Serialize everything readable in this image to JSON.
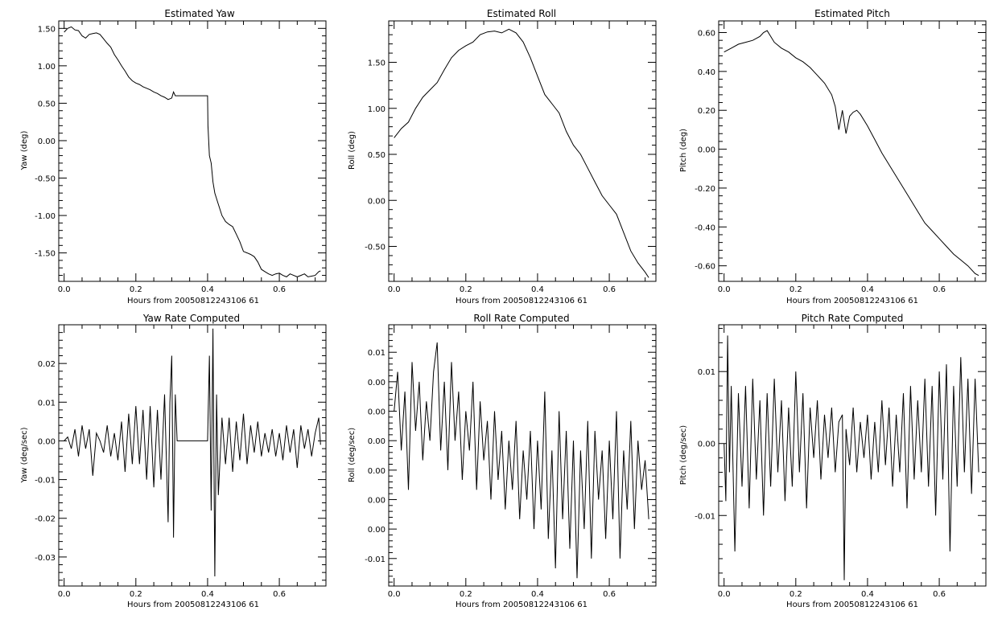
{
  "figure": {
    "background": "#ffffff",
    "line_color": "#000000"
  },
  "chart_data": [
    {
      "type": "line",
      "title": "Estimated Yaw",
      "xlabel": "Hours from 20050812243106 61",
      "ylabel": "Yaw (deg)",
      "xlim": [
        -0.015,
        0.73
      ],
      "ylim": [
        -1.88,
        1.6
      ],
      "xticks": [
        0.0,
        0.2,
        0.4,
        0.6
      ],
      "xtick_labels": [
        "0.0",
        "0.2",
        "0.4",
        "0.6"
      ],
      "yticks": [
        1.5,
        1.0,
        0.5,
        0.0,
        -0.5,
        -1.0,
        -1.5
      ],
      "ytick_labels": [
        "1.50",
        "1.00",
        "0.50",
        "0.00",
        "-0.50",
        "-1.00",
        "-1.50"
      ],
      "series": [
        {
          "x": [
            0.0,
            0.01,
            0.02,
            0.03,
            0.04,
            0.05,
            0.06,
            0.07,
            0.08,
            0.09,
            0.1,
            0.11,
            0.12,
            0.13,
            0.14,
            0.15,
            0.16,
            0.17,
            0.18,
            0.19,
            0.2,
            0.21,
            0.22,
            0.23,
            0.24,
            0.25,
            0.26,
            0.27,
            0.28,
            0.29,
            0.3,
            0.305,
            0.31,
            0.32,
            0.33,
            0.34,
            0.35,
            0.36,
            0.37,
            0.38,
            0.39,
            0.4,
            0.401,
            0.405,
            0.41,
            0.415,
            0.42,
            0.43,
            0.44,
            0.45,
            0.46,
            0.47,
            0.48,
            0.49,
            0.5,
            0.51,
            0.52,
            0.53,
            0.54,
            0.55,
            0.56,
            0.57,
            0.58,
            0.59,
            0.6,
            0.61,
            0.62,
            0.63,
            0.64,
            0.65,
            0.66,
            0.67,
            0.68,
            0.69,
            0.7,
            0.71,
            0.715
          ],
          "y": [
            1.45,
            1.5,
            1.52,
            1.48,
            1.47,
            1.4,
            1.37,
            1.42,
            1.43,
            1.44,
            1.42,
            1.36,
            1.3,
            1.25,
            1.15,
            1.08,
            1.0,
            0.93,
            0.85,
            0.8,
            0.77,
            0.75,
            0.72,
            0.7,
            0.68,
            0.65,
            0.63,
            0.6,
            0.58,
            0.55,
            0.57,
            0.65,
            0.6,
            0.6,
            0.6,
            0.6,
            0.6,
            0.6,
            0.6,
            0.6,
            0.6,
            0.6,
            0.2,
            -0.2,
            -0.3,
            -0.55,
            -0.7,
            -0.85,
            -1.0,
            -1.08,
            -1.12,
            -1.15,
            -1.25,
            -1.35,
            -1.48,
            -1.5,
            -1.52,
            -1.55,
            -1.62,
            -1.72,
            -1.75,
            -1.78,
            -1.8,
            -1.78,
            -1.77,
            -1.8,
            -1.82,
            -1.78,
            -1.8,
            -1.82,
            -1.8,
            -1.78,
            -1.82,
            -1.81,
            -1.8,
            -1.75,
            -1.74
          ]
        }
      ]
    },
    {
      "type": "line",
      "title": "Estimated Roll",
      "xlabel": "Hours from 20050812243106 61",
      "ylabel": "Roll (deg)",
      "xlim": [
        -0.015,
        0.73
      ],
      "ylim": [
        -0.88,
        1.95
      ],
      "xticks": [
        0.0,
        0.2,
        0.4,
        0.6
      ],
      "xtick_labels": [
        "0.0",
        "0.2",
        "0.4",
        "0.6"
      ],
      "yticks": [
        1.5,
        1.0,
        0.5,
        0.0,
        -0.5
      ],
      "ytick_labels": [
        "1.50",
        "1.00",
        "0.50",
        "0.00",
        "-0.50"
      ],
      "series": [
        {
          "x": [
            0.0,
            0.02,
            0.04,
            0.06,
            0.08,
            0.1,
            0.12,
            0.14,
            0.16,
            0.18,
            0.2,
            0.22,
            0.24,
            0.26,
            0.28,
            0.3,
            0.32,
            0.34,
            0.36,
            0.38,
            0.4,
            0.42,
            0.44,
            0.46,
            0.48,
            0.5,
            0.52,
            0.54,
            0.56,
            0.58,
            0.6,
            0.62,
            0.64,
            0.66,
            0.68,
            0.7,
            0.71
          ],
          "y": [
            0.68,
            0.78,
            0.85,
            1.0,
            1.12,
            1.2,
            1.28,
            1.42,
            1.55,
            1.63,
            1.68,
            1.72,
            1.8,
            1.83,
            1.84,
            1.82,
            1.86,
            1.82,
            1.72,
            1.55,
            1.35,
            1.15,
            1.05,
            0.95,
            0.75,
            0.6,
            0.5,
            0.35,
            0.2,
            0.05,
            -0.05,
            -0.15,
            -0.35,
            -0.55,
            -0.68,
            -0.78,
            -0.84
          ]
        }
      ]
    },
    {
      "type": "line",
      "title": "Estimated Pitch",
      "xlabel": "Hours from 20050812243106 61",
      "ylabel": "Pitch (deg)",
      "xlim": [
        -0.015,
        0.73
      ],
      "ylim": [
        -0.68,
        0.66
      ],
      "xticks": [
        0.0,
        0.2,
        0.4,
        0.6
      ],
      "xtick_labels": [
        "0.0",
        "0.2",
        "0.4",
        "0.6"
      ],
      "yticks": [
        0.6,
        0.4,
        0.2,
        0.0,
        -0.2,
        -0.4,
        -0.6
      ],
      "ytick_labels": [
        "0.60",
        "0.40",
        "0.20",
        "0.00",
        "-0.20",
        "-0.40",
        "-0.60"
      ],
      "series": [
        {
          "x": [
            0.0,
            0.02,
            0.04,
            0.06,
            0.08,
            0.1,
            0.11,
            0.12,
            0.13,
            0.14,
            0.16,
            0.18,
            0.2,
            0.22,
            0.24,
            0.26,
            0.28,
            0.3,
            0.31,
            0.32,
            0.33,
            0.34,
            0.35,
            0.36,
            0.37,
            0.38,
            0.4,
            0.42,
            0.44,
            0.46,
            0.48,
            0.5,
            0.52,
            0.54,
            0.56,
            0.58,
            0.6,
            0.62,
            0.64,
            0.66,
            0.68,
            0.7,
            0.71
          ],
          "y": [
            0.5,
            0.52,
            0.54,
            0.55,
            0.56,
            0.58,
            0.6,
            0.61,
            0.58,
            0.55,
            0.52,
            0.5,
            0.47,
            0.45,
            0.42,
            0.38,
            0.34,
            0.28,
            0.22,
            0.1,
            0.2,
            0.08,
            0.17,
            0.19,
            0.2,
            0.18,
            0.12,
            0.05,
            -0.02,
            -0.08,
            -0.14,
            -0.2,
            -0.26,
            -0.32,
            -0.38,
            -0.42,
            -0.46,
            -0.5,
            -0.54,
            -0.57,
            -0.6,
            -0.64,
            -0.65
          ]
        }
      ]
    },
    {
      "type": "line",
      "title": "Yaw Rate Computed",
      "xlabel": "Hours from 20050812243106 61",
      "ylabel": "Yaw (deg/sec)",
      "xlim": [
        -0.015,
        0.73
      ],
      "ylim": [
        -0.0375,
        0.03
      ],
      "xticks": [
        0.0,
        0.2,
        0.4,
        0.6
      ],
      "xtick_labels": [
        "0.0",
        "0.2",
        "0.4",
        "0.6"
      ],
      "yticks": [
        0.02,
        0.01,
        0.0,
        -0.01,
        -0.02,
        -0.03
      ],
      "ytick_labels": [
        "0.02",
        "0.01",
        "0.00",
        "-0.01",
        "-0.02",
        "-0.03"
      ],
      "series": [
        {
          "x": [
            0.0,
            0.01,
            0.02,
            0.03,
            0.04,
            0.05,
            0.06,
            0.07,
            0.08,
            0.09,
            0.1,
            0.11,
            0.12,
            0.13,
            0.14,
            0.15,
            0.16,
            0.17,
            0.18,
            0.19,
            0.2,
            0.21,
            0.22,
            0.23,
            0.24,
            0.25,
            0.26,
            0.27,
            0.28,
            0.29,
            0.295,
            0.3,
            0.305,
            0.31,
            0.315,
            0.4,
            0.405,
            0.41,
            0.415,
            0.42,
            0.425,
            0.43,
            0.44,
            0.45,
            0.46,
            0.47,
            0.48,
            0.49,
            0.5,
            0.51,
            0.52,
            0.53,
            0.54,
            0.55,
            0.56,
            0.57,
            0.58,
            0.59,
            0.6,
            0.61,
            0.62,
            0.63,
            0.64,
            0.65,
            0.66,
            0.67,
            0.68,
            0.69,
            0.7,
            0.71,
            0.715
          ],
          "y": [
            0.0,
            0.001,
            -0.002,
            0.003,
            -0.004,
            0.004,
            -0.002,
            0.003,
            -0.009,
            0.002,
            0.0,
            -0.003,
            0.004,
            -0.004,
            0.002,
            -0.005,
            0.005,
            -0.008,
            0.007,
            -0.006,
            0.009,
            -0.006,
            0.008,
            -0.01,
            0.009,
            -0.012,
            0.008,
            -0.01,
            0.012,
            -0.021,
            0.01,
            0.022,
            -0.025,
            0.012,
            0.0,
            0.0,
            0.022,
            -0.018,
            0.029,
            -0.035,
            0.012,
            -0.014,
            0.006,
            -0.006,
            0.006,
            -0.008,
            0.005,
            -0.005,
            0.007,
            -0.006,
            0.004,
            -0.003,
            0.005,
            -0.004,
            0.002,
            -0.003,
            0.003,
            -0.004,
            0.002,
            -0.005,
            0.004,
            -0.003,
            0.003,
            -0.007,
            0.004,
            -0.002,
            0.003,
            -0.004,
            0.002,
            0.006,
            -0.001
          ]
        }
      ]
    },
    {
      "type": "line",
      "title": "Roll Rate Computed",
      "xlabel": "Hours from 20050812243106 61",
      "ylabel": "Roll (deg/sec)",
      "xlim": [
        -0.015,
        0.73
      ],
      "ylim": [
        -0.0118,
        0.0148
      ],
      "xticks": [
        0.0,
        0.2,
        0.4,
        0.6
      ],
      "xtick_labels": [
        "0.0",
        "0.2",
        "0.4",
        "0.6"
      ],
      "yticks": [
        0.012,
        0.009,
        0.006,
        0.003,
        0.0,
        -0.003,
        -0.006,
        -0.009
      ],
      "ytick_labels": [
        "0.01",
        "0.00",
        "0.00",
        "0.00",
        "0.00",
        "0.00",
        "0.00",
        "-0.01"
      ],
      "series": [
        {
          "x": [
            0.0,
            0.01,
            0.02,
            0.03,
            0.04,
            0.05,
            0.06,
            0.07,
            0.08,
            0.09,
            0.1,
            0.11,
            0.12,
            0.13,
            0.14,
            0.15,
            0.16,
            0.17,
            0.18,
            0.19,
            0.2,
            0.21,
            0.22,
            0.23,
            0.24,
            0.25,
            0.26,
            0.27,
            0.28,
            0.29,
            0.3,
            0.31,
            0.32,
            0.33,
            0.34,
            0.35,
            0.36,
            0.37,
            0.38,
            0.39,
            0.4,
            0.41,
            0.42,
            0.43,
            0.44,
            0.45,
            0.46,
            0.47,
            0.48,
            0.49,
            0.5,
            0.51,
            0.52,
            0.53,
            0.54,
            0.55,
            0.56,
            0.57,
            0.58,
            0.59,
            0.6,
            0.61,
            0.62,
            0.63,
            0.64,
            0.65,
            0.66,
            0.67,
            0.68,
            0.69,
            0.7,
            0.71
          ],
          "y": [
            0.006,
            0.01,
            0.002,
            0.008,
            -0.002,
            0.011,
            0.004,
            0.009,
            0.001,
            0.007,
            0.003,
            0.01,
            0.013,
            0.002,
            0.009,
            0.0,
            0.011,
            0.003,
            0.008,
            -0.001,
            0.006,
            0.002,
            0.009,
            -0.002,
            0.007,
            0.001,
            0.005,
            -0.003,
            0.006,
            -0.001,
            0.004,
            -0.004,
            0.003,
            -0.002,
            0.005,
            -0.005,
            0.002,
            -0.003,
            0.004,
            -0.006,
            0.003,
            -0.004,
            0.008,
            -0.007,
            0.002,
            -0.01,
            0.006,
            -0.005,
            0.004,
            -0.008,
            0.003,
            -0.011,
            0.002,
            -0.006,
            0.005,
            -0.009,
            0.004,
            -0.003,
            0.002,
            -0.007,
            0.003,
            -0.005,
            0.006,
            -0.009,
            0.002,
            -0.004,
            0.005,
            -0.006,
            0.003,
            -0.002,
            0.001,
            -0.005
          ]
        }
      ]
    },
    {
      "type": "line",
      "title": "Pitch Rate Computed",
      "xlabel": "Hours from 20050812243106 61",
      "ylabel": "Pitch (deg/sec)",
      "xlim": [
        -0.015,
        0.73
      ],
      "ylim": [
        -0.0198,
        0.0165
      ],
      "xticks": [
        0.0,
        0.2,
        0.4,
        0.6
      ],
      "xtick_labels": [
        "0.0",
        "0.2",
        "0.4",
        "0.6"
      ],
      "yticks": [
        0.01,
        0.0,
        -0.01
      ],
      "ytick_labels": [
        "0.01",
        "0.00",
        "-0.01"
      ],
      "series": [
        {
          "x": [
            0.0,
            0.005,
            0.01,
            0.015,
            0.02,
            0.03,
            0.04,
            0.05,
            0.06,
            0.07,
            0.08,
            0.09,
            0.1,
            0.11,
            0.12,
            0.13,
            0.14,
            0.15,
            0.16,
            0.17,
            0.18,
            0.19,
            0.2,
            0.21,
            0.22,
            0.23,
            0.24,
            0.25,
            0.26,
            0.27,
            0.28,
            0.29,
            0.3,
            0.31,
            0.32,
            0.33,
            0.335,
            0.34,
            0.35,
            0.36,
            0.37,
            0.38,
            0.39,
            0.4,
            0.41,
            0.42,
            0.43,
            0.44,
            0.45,
            0.46,
            0.47,
            0.48,
            0.49,
            0.5,
            0.51,
            0.52,
            0.53,
            0.54,
            0.55,
            0.56,
            0.57,
            0.58,
            0.59,
            0.6,
            0.61,
            0.62,
            0.63,
            0.64,
            0.65,
            0.66,
            0.67,
            0.68,
            0.69,
            0.7,
            0.71
          ],
          "y": [
            0.0,
            -0.008,
            0.015,
            -0.004,
            0.008,
            -0.015,
            0.007,
            -0.006,
            0.008,
            -0.009,
            0.009,
            -0.005,
            0.006,
            -0.01,
            0.007,
            -0.006,
            0.009,
            -0.004,
            0.006,
            -0.008,
            0.005,
            -0.006,
            0.01,
            -0.004,
            0.007,
            -0.009,
            0.005,
            -0.002,
            0.006,
            -0.005,
            0.004,
            -0.002,
            0.005,
            -0.004,
            0.003,
            0.004,
            -0.019,
            0.002,
            -0.003,
            0.005,
            -0.004,
            0.003,
            -0.002,
            0.004,
            -0.005,
            0.003,
            -0.004,
            0.006,
            -0.003,
            0.005,
            -0.006,
            0.004,
            -0.004,
            0.007,
            -0.009,
            0.008,
            -0.005,
            0.006,
            -0.004,
            0.009,
            -0.006,
            0.008,
            -0.01,
            0.01,
            -0.005,
            0.011,
            -0.015,
            0.008,
            -0.006,
            0.012,
            -0.004,
            0.009,
            -0.007,
            0.009,
            -0.004
          ]
        }
      ]
    }
  ]
}
